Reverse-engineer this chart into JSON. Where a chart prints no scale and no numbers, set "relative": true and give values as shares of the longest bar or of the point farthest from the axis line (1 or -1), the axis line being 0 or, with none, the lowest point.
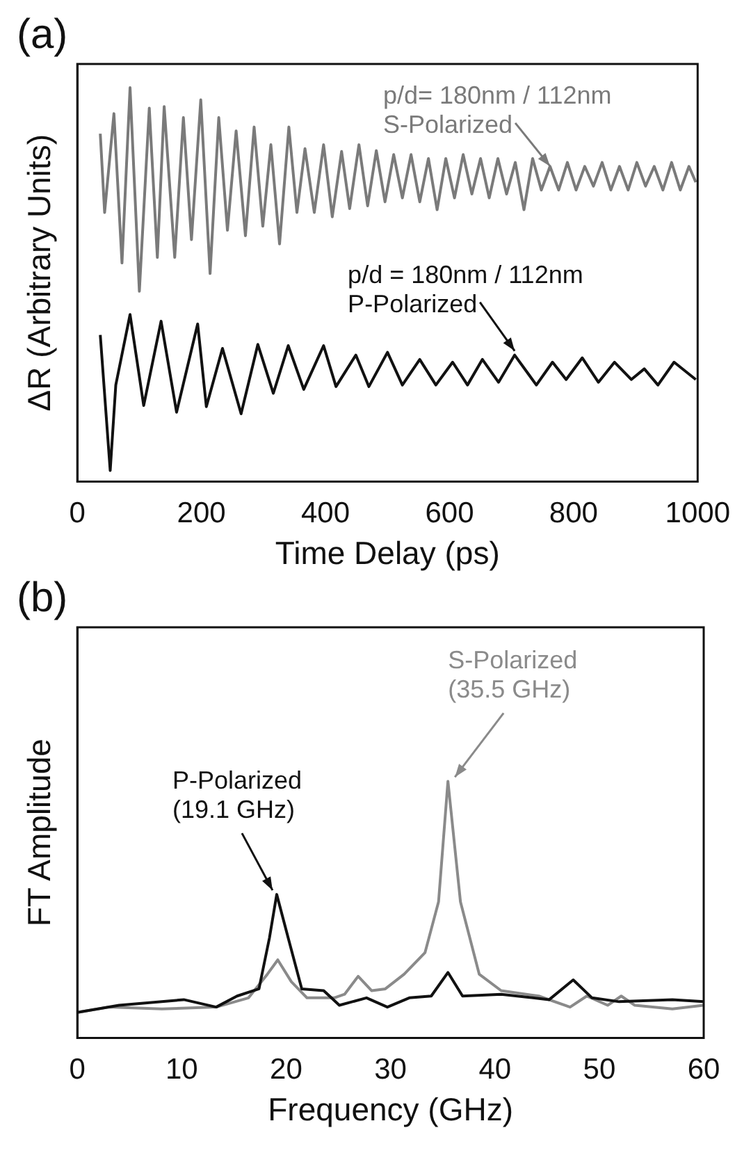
{
  "chart_data": [
    {
      "type": "line",
      "title": "(a)",
      "xlabel": "Time Delay (ps)",
      "ylabel": "ΔR (Arbitrary Units)",
      "xlim": [
        0,
        1000
      ],
      "xticks": [
        0,
        200,
        400,
        600,
        800,
        1000
      ],
      "relative": true,
      "series": [
        {
          "color": "#7a7a7a",
          "x": [
            37,
            44,
            59,
            72,
            85,
            100,
            116,
            129,
            140,
            157,
            171,
            184,
            199,
            214,
            228,
            242,
            256,
            271,
            285,
            299,
            312,
            326,
            341,
            354,
            367,
            382,
            397,
            411,
            426,
            439,
            454,
            468,
            482,
            496,
            510,
            524,
            538,
            552,
            566,
            580,
            594,
            608,
            622,
            636,
            650,
            664,
            678,
            692,
            706,
            720,
            734,
            748,
            762,
            776,
            790,
            804,
            818,
            832,
            846,
            860,
            874,
            888,
            902,
            916,
            930,
            944,
            958,
            972,
            986,
            997
          ],
          "values": [
            0.883,
            0.683,
            0.934,
            0.555,
            1,
            0.483,
            0.948,
            0.569,
            0.952,
            0.569,
            0.924,
            0.614,
            0.969,
            0.528,
            0.924,
            0.638,
            0.89,
            0.624,
            0.9,
            0.648,
            0.855,
            0.603,
            0.9,
            0.683,
            0.845,
            0.683,
            0.855,
            0.672,
            0.838,
            0.693,
            0.855,
            0.7,
            0.84,
            0.71,
            0.83,
            0.72,
            0.83,
            0.71,
            0.82,
            0.69,
            0.82,
            0.72,
            0.83,
            0.73,
            0.82,
            0.72,
            0.82,
            0.73,
            0.81,
            0.69,
            0.82,
            0.74,
            0.8,
            0.74,
            0.81,
            0.74,
            0.8,
            0.75,
            0.81,
            0.74,
            0.8,
            0.74,
            0.81,
            0.75,
            0.8,
            0.74,
            0.81,
            0.74,
            0.8,
            0.76
          ]
        },
        {
          "color": "#111111",
          "x": [
            37,
            53,
            62,
            85,
            107,
            135,
            160,
            194,
            208,
            234,
            264,
            291,
            316,
            340,
            365,
            397,
            417,
            449,
            470,
            500,
            524,
            552,
            578,
            605,
            629,
            653,
            679,
            705,
            740,
            766,
            788,
            814,
            840,
            866,
            893,
            914,
            936,
            962,
            997
          ],
          "values": [
            0.372,
            0.028,
            0.245,
            0.424,
            0.193,
            0.407,
            0.176,
            0.4,
            0.19,
            0.338,
            0.172,
            0.348,
            0.224,
            0.345,
            0.234,
            0.345,
            0.241,
            0.321,
            0.241,
            0.328,
            0.245,
            0.31,
            0.245,
            0.303,
            0.245,
            0.31,
            0.252,
            0.321,
            0.245,
            0.303,
            0.259,
            0.314,
            0.252,
            0.303,
            0.259,
            0.286,
            0.245,
            0.303,
            0.259
          ]
        }
      ],
      "annotations": [
        {
          "text": "p/d= 180nm / 112nm\nS-Polarized",
          "x": 762,
          "y": 0.79
        },
        {
          "text": "p/d = 180nm / 112nm\nP-Polarized",
          "x": 705,
          "y": 0.321
        }
      ]
    },
    {
      "type": "line",
      "title": "(b)",
      "xlabel": "Frequency (GHz)",
      "ylabel": "FT Amplitude",
      "xlim": [
        0,
        60
      ],
      "xticks": [
        0,
        10,
        20,
        30,
        40,
        50,
        60
      ],
      "relative": true,
      "series": [
        {
          "color": "#111111",
          "x": [
            0,
            4,
            10.2,
            13.3,
            15.3,
            17.4,
            18.4,
            19.1,
            20.2,
            21.5,
            23.6,
            25.1,
            27.7,
            29.7,
            31.8,
            33.9,
            35.5,
            36.9,
            40.6,
            45.2,
            47.5,
            49.3,
            51.9,
            57,
            60
          ],
          "values": [
            0.099,
            0.127,
            0.149,
            0.12,
            0.163,
            0.191,
            0.389,
            0.559,
            0.389,
            0.191,
            0.184,
            0.127,
            0.156,
            0.12,
            0.156,
            0.163,
            0.255,
            0.163,
            0.17,
            0.149,
            0.226,
            0.156,
            0.141,
            0.149,
            0.141
          ]
        },
        {
          "color": "#8a8a8a",
          "x": [
            0,
            3,
            8.1,
            13.3,
            16.4,
            18.2,
            19.2,
            20.5,
            22,
            24.6,
            25.6,
            26.9,
            28.2,
            29.5,
            31.3,
            33.3,
            34.6,
            35.5,
            36.7,
            38.5,
            40.6,
            44.2,
            47.2,
            48.8,
            50.8,
            52.1,
            53.4,
            57,
            60
          ],
          "values": [
            0.099,
            0.12,
            0.113,
            0.12,
            0.156,
            0.248,
            0.304,
            0.219,
            0.156,
            0.156,
            0.17,
            0.24,
            0.184,
            0.191,
            0.248,
            0.332,
            0.53,
            1,
            0.53,
            0.248,
            0.184,
            0.163,
            0.12,
            0.163,
            0.127,
            0.163,
            0.127,
            0.113,
            0.127
          ]
        }
      ],
      "annotations": [
        {
          "text": "P-Polarized\n(19.1 GHz)",
          "x": 19.1,
          "y": 0.559
        },
        {
          "text": "S-Polarized\n(35.5 GHz)",
          "x": 35.5,
          "y": 1
        }
      ]
    }
  ]
}
